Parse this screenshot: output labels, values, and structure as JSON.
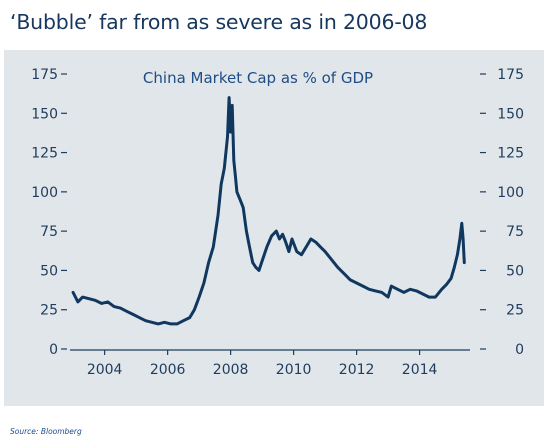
{
  "headline": "‘Bubble’ far from as severe as in 2006-08",
  "source": "Source: Bloomberg",
  "colors": {
    "title_text": "#16375e",
    "panel_background": "#e1e6ea",
    "line": "#10385f",
    "axis_text": "#1f3c5c"
  },
  "chart_data": {
    "type": "line",
    "title": "China Market Cap as % of GDP",
    "xlabel": "",
    "ylabel": "",
    "xlim": [
      2002.9,
      2015.6
    ],
    "ylim": [
      0,
      175
    ],
    "yticks": [
      0,
      25,
      50,
      75,
      100,
      125,
      150,
      175
    ],
    "xticks": [
      2004,
      2006,
      2008,
      2010,
      2012,
      2014
    ],
    "ytick_labels": [
      "0",
      "25",
      "50",
      "75",
      "100",
      "125",
      "150",
      "175"
    ],
    "xtick_labels": [
      "2004",
      "2006",
      "2008",
      "2010",
      "2012",
      "2014"
    ],
    "grid": false,
    "legend": "none",
    "series": [
      {
        "name": "",
        "x": [
          2003.0,
          2003.15,
          2003.3,
          2003.5,
          2003.7,
          2003.9,
          2004.1,
          2004.3,
          2004.5,
          2004.7,
          2004.9,
          2005.1,
          2005.3,
          2005.5,
          2005.7,
          2005.9,
          2006.1,
          2006.3,
          2006.5,
          2006.7,
          2006.85,
          2007.0,
          2007.15,
          2007.3,
          2007.45,
          2007.6,
          2007.7,
          2007.8,
          2007.9,
          2007.95,
          2008.0,
          2008.05,
          2008.1,
          2008.15,
          2008.2,
          2008.3,
          2008.4,
          2008.5,
          2008.6,
          2008.7,
          2008.8,
          2008.9,
          2009.0,
          2009.15,
          2009.3,
          2009.45,
          2009.55,
          2009.65,
          2009.75,
          2009.85,
          2009.95,
          2010.1,
          2010.25,
          2010.4,
          2010.55,
          2010.7,
          2010.85,
          2011.0,
          2011.2,
          2011.4,
          2011.6,
          2011.8,
          2012.0,
          2012.2,
          2012.4,
          2012.6,
          2012.8,
          2013.0,
          2013.1,
          2013.3,
          2013.5,
          2013.7,
          2013.9,
          2014.1,
          2014.3,
          2014.5,
          2014.7,
          2014.85,
          2015.0,
          2015.1,
          2015.2,
          2015.28,
          2015.34,
          2015.38,
          2015.42
        ],
        "y": [
          36,
          30,
          33,
          32,
          31,
          29,
          30,
          27,
          26,
          24,
          22,
          20,
          18,
          17,
          16,
          17,
          16,
          16,
          18,
          20,
          25,
          33,
          42,
          55,
          65,
          85,
          105,
          115,
          135,
          160,
          138,
          155,
          120,
          110,
          100,
          95,
          90,
          75,
          65,
          55,
          52,
          50,
          56,
          65,
          72,
          75,
          70,
          73,
          68,
          62,
          70,
          62,
          60,
          65,
          70,
          68,
          65,
          62,
          57,
          52,
          48,
          44,
          42,
          40,
          38,
          37,
          36,
          33,
          40,
          38,
          36,
          38,
          37,
          35,
          33,
          33,
          38,
          41,
          45,
          52,
          60,
          70,
          80,
          70,
          55
        ]
      }
    ]
  }
}
